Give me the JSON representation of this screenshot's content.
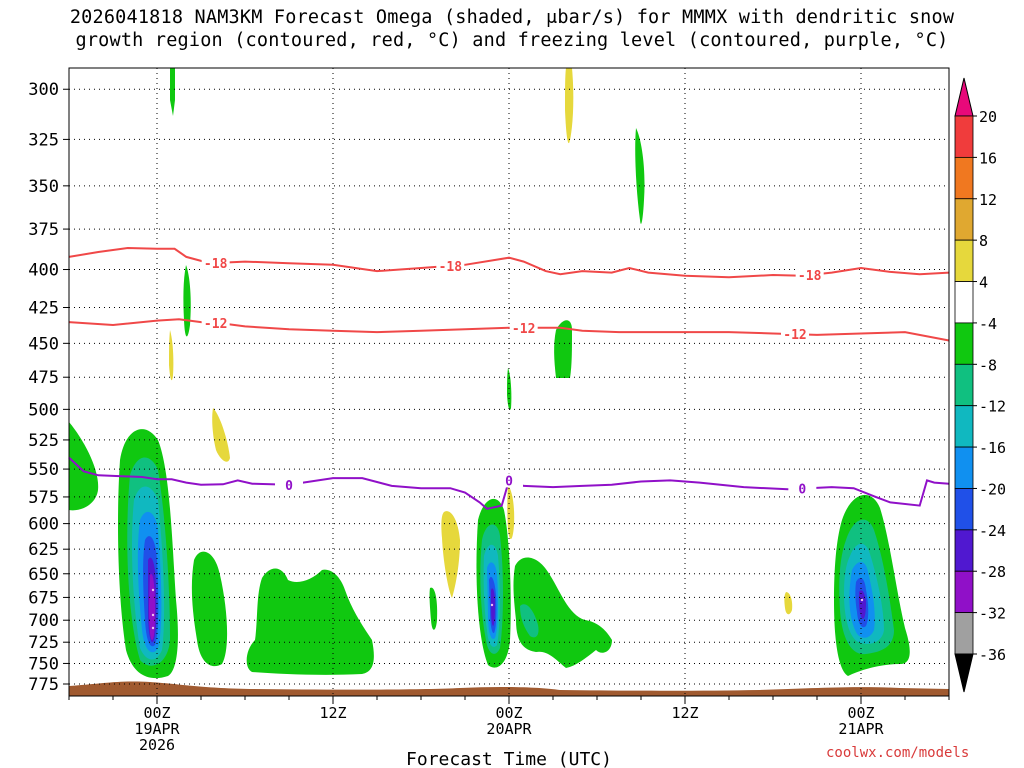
{
  "title_line1": "2026041818 NAM3KM Forecast Omega (shaded, μbar/s) for MMMX with dendritic snow",
  "title_line2": "growth region (contoured, red, °C) and freezing level (contoured, purple, °C)",
  "xlabel": "Forecast Time (UTC)",
  "watermark": "coolwx.com/models",
  "chart_data": {
    "type": "heatmap",
    "title": "2026041818 NAM3KM Forecast Omega (shaded, μbar/s) for MMMX with dendritic snow growth region (contoured, red, °C) and freezing level (contoured, purple, °C)",
    "xlabel": "Forecast Time (UTC)",
    "ylabel": "",
    "x_range_hours_from_init": [
      0,
      60
    ],
    "y_range_hPa": [
      290,
      790
    ],
    "y_ticks": [
      300,
      325,
      350,
      375,
      400,
      425,
      450,
      475,
      500,
      525,
      550,
      575,
      600,
      625,
      650,
      675,
      700,
      725,
      750,
      775
    ],
    "x_ticks": [
      {
        "hour": 6,
        "label": [
          "00Z",
          "19APR",
          "2026"
        ]
      },
      {
        "hour": 18,
        "label": [
          "12Z"
        ]
      },
      {
        "hour": 30,
        "label": [
          "00Z",
          "20APR"
        ]
      },
      {
        "hour": 42,
        "label": [
          "12Z"
        ]
      },
      {
        "hour": 54,
        "label": [
          "00Z",
          "21APR"
        ]
      }
    ],
    "grid": true,
    "colorbar": {
      "labels": [
        "20",
        "16",
        "12",
        "8",
        "4",
        "-4",
        "-8",
        "-12",
        "-16",
        "-20",
        "-24",
        "-28",
        "-32",
        "-36"
      ],
      "colors": [
        "#e8097a",
        "#f03c3c",
        "#f07820",
        "#e0a830",
        "#e6d83c",
        "#ffffff",
        "#10c810",
        "#10c080",
        "#10b8c0",
        "#1090f0",
        "#2050e8",
        "#5018d0",
        "#9010c8",
        "#a0a0a0",
        "#000000"
      ]
    },
    "contours": [
      {
        "label": "-18",
        "color": "#f04848",
        "points": [
          [
            0,
            392
          ],
          [
            2,
            389
          ],
          [
            4,
            386.5
          ],
          [
            6,
            387
          ],
          [
            7.2,
            387
          ],
          [
            8,
            392
          ],
          [
            9.6,
            396
          ],
          [
            12,
            395
          ],
          [
            15,
            396
          ],
          [
            18,
            397
          ],
          [
            21,
            401
          ],
          [
            24,
            399
          ],
          [
            27,
            397
          ],
          [
            30,
            392.5
          ],
          [
            31,
            395
          ],
          [
            32.5,
            401
          ],
          [
            33.5,
            403
          ],
          [
            35,
            401
          ],
          [
            37,
            402
          ],
          [
            38.2,
            399
          ],
          [
            39.5,
            402
          ],
          [
            42,
            404
          ],
          [
            45,
            405
          ],
          [
            48,
            403.5
          ],
          [
            50,
            404
          ],
          [
            52,
            402
          ],
          [
            54,
            399
          ],
          [
            56,
            401.5
          ],
          [
            58,
            403
          ],
          [
            60,
            402
          ]
        ]
      },
      {
        "label": "-12",
        "color": "#f04848",
        "points": [
          [
            0,
            435
          ],
          [
            3,
            437
          ],
          [
            6,
            434
          ],
          [
            7.5,
            433
          ],
          [
            9,
            435
          ],
          [
            10.5,
            436
          ],
          [
            12,
            438
          ],
          [
            15,
            440
          ],
          [
            18,
            441
          ],
          [
            21,
            442
          ],
          [
            24,
            441
          ],
          [
            27,
            440
          ],
          [
            30,
            439
          ],
          [
            32,
            439
          ],
          [
            33.5,
            439
          ],
          [
            35,
            441
          ],
          [
            37.5,
            442
          ],
          [
            42,
            442
          ],
          [
            45,
            442
          ],
          [
            48,
            443
          ],
          [
            51,
            444
          ],
          [
            54,
            443
          ],
          [
            57,
            442
          ],
          [
            60,
            448
          ]
        ]
      },
      {
        "label": "0",
        "color": "#9010c8",
        "points": [
          [
            0,
            540
          ],
          [
            1,
            552
          ],
          [
            2,
            555.5
          ],
          [
            3,
            556
          ],
          [
            5,
            557
          ],
          [
            6,
            559
          ],
          [
            7,
            559
          ],
          [
            8,
            562
          ],
          [
            9,
            564
          ],
          [
            10.5,
            563.5
          ],
          [
            11.5,
            560
          ],
          [
            12.5,
            563
          ],
          [
            15,
            564
          ],
          [
            18,
            558
          ],
          [
            20,
            558
          ],
          [
            22,
            565
          ],
          [
            24,
            567
          ],
          [
            26,
            567
          ],
          [
            27,
            571
          ],
          [
            28,
            580
          ],
          [
            28.5,
            586
          ],
          [
            29.5,
            583
          ],
          [
            30,
            560
          ],
          [
            31,
            565
          ],
          [
            33,
            566
          ],
          [
            35,
            565
          ],
          [
            37,
            564
          ],
          [
            39,
            561
          ],
          [
            41,
            560
          ],
          [
            43,
            562
          ],
          [
            46,
            566
          ],
          [
            49,
            568
          ],
          [
            52,
            566
          ],
          [
            53.5,
            567
          ],
          [
            55,
            575
          ],
          [
            56,
            580
          ],
          [
            58,
            583
          ],
          [
            58.5,
            560
          ],
          [
            59,
            562
          ],
          [
            60,
            563
          ]
        ]
      }
    ],
    "omega_features": [
      {
        "value_range": "-4 to -8",
        "hour": 6.0,
        "pressure_hPa": 680,
        "note": "ascent core before 00Z 19APR, min below -32"
      },
      {
        "value_range": "-4 to -8",
        "hour": 30.0,
        "pressure_hPa": 672,
        "note": "ascent core near 00Z 20APR, min below -32"
      },
      {
        "value_range": "-4 to -8",
        "hour": 54.0,
        "pressure_hPa": 680,
        "note": "ascent core near 00Z 21APR, min near -28"
      },
      {
        "value_range": "4 to 8",
        "hour": 33.9,
        "pressure_hPa": 305,
        "note": "descent"
      },
      {
        "value_range": "4 to 8",
        "hour": 26.0,
        "pressure_hPa": 630,
        "note": "descent"
      }
    ]
  }
}
